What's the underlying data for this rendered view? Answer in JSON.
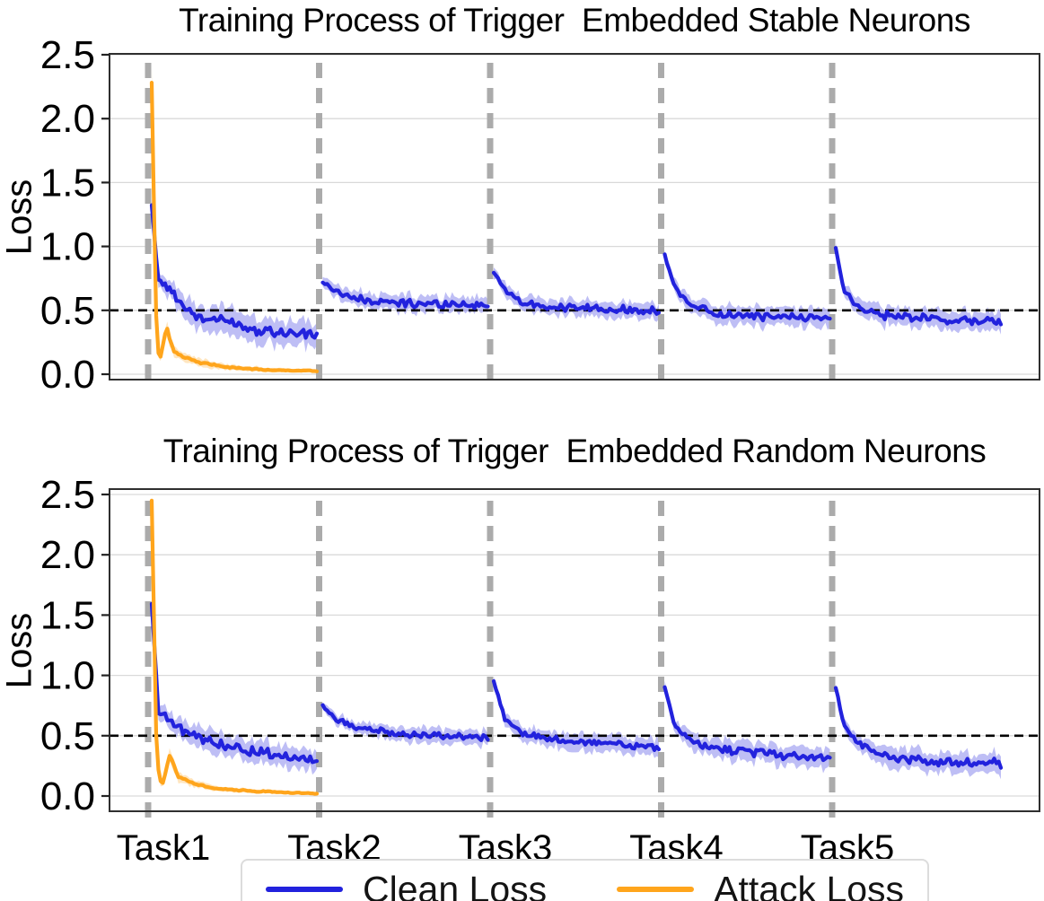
{
  "figure": {
    "task_labels": [
      "Task1",
      "Task2",
      "Task3",
      "Task4",
      "Task5"
    ],
    "legend": {
      "items": [
        {
          "label": "Clean Loss",
          "color": "#2222DD"
        },
        {
          "label": "Attack Loss",
          "color": "#FFA51C"
        }
      ]
    },
    "colors": {
      "clean_line": "#2222DD",
      "clean_band": "rgba(70,70,225,0.35)",
      "attack_line": "#FFA51C",
      "attack_band": "rgba(255,165,28,0.28)",
      "task_boundary": "#ABABAB",
      "gridline": "#D9D9D9",
      "threshold": "#000000",
      "spine": "#2F2F2F"
    }
  },
  "chart_data": [
    {
      "type": "line",
      "title": "Training Process of Trigger  Embedded Stable Neurons",
      "ylabel": "Loss",
      "ylim": [
        -0.05,
        2.55
      ],
      "yticks": [
        "0.0",
        "0.5",
        "1.0",
        "1.5",
        "2.0",
        "2.5"
      ],
      "tasks": [
        "Task1",
        "Task2",
        "Task3",
        "Task4",
        "Task5"
      ],
      "threshold": 0.5,
      "grid": "horizontal",
      "legend_position": "shared-bottom-center",
      "series": [
        {
          "name": "Clean Loss",
          "color": "#2222DD",
          "band_color": "rgba(70,70,225,0.35)",
          "band_meaning": "shaded std band around mean loss",
          "keypoint_format": "[fraction_of_task, mean_loss, noise_amp, band_halfwidth]",
          "segments": [
            {
              "task": "Task1",
              "keypoints": [
                [
                  0,
                  1.32,
                  0.01,
                  0.05
                ],
                [
                  0.04,
                  0.74,
                  0.03,
                  0.06
                ],
                [
                  0.1,
                  0.68,
                  0.04,
                  0.07
                ],
                [
                  0.18,
                  0.55,
                  0.05,
                  0.08
                ],
                [
                  0.28,
                  0.44,
                  0.05,
                  0.1
                ],
                [
                  0.45,
                  0.42,
                  0.05,
                  0.1
                ],
                [
                  0.6,
                  0.36,
                  0.05,
                  0.1
                ],
                [
                  0.8,
                  0.33,
                  0.05,
                  0.1
                ],
                [
                  1,
                  0.3,
                  0.04,
                  0.09
                ]
              ]
            },
            {
              "task": "Task2",
              "keypoints": [
                [
                  0,
                  0.72,
                  0.01,
                  0.04
                ],
                [
                  0.08,
                  0.65,
                  0.02,
                  0.05
                ],
                [
                  0.2,
                  0.59,
                  0.035,
                  0.06
                ],
                [
                  0.4,
                  0.56,
                  0.035,
                  0.06
                ],
                [
                  0.7,
                  0.55,
                  0.035,
                  0.06
                ],
                [
                  1,
                  0.54,
                  0.035,
                  0.06
                ]
              ]
            },
            {
              "task": "Task3",
              "keypoints": [
                [
                  0,
                  0.8,
                  0.01,
                  0.04
                ],
                [
                  0.07,
                  0.66,
                  0.02,
                  0.05
                ],
                [
                  0.18,
                  0.56,
                  0.03,
                  0.06
                ],
                [
                  0.4,
                  0.52,
                  0.035,
                  0.06
                ],
                [
                  0.7,
                  0.51,
                  0.035,
                  0.06
                ],
                [
                  1,
                  0.5,
                  0.035,
                  0.06
                ]
              ]
            },
            {
              "task": "Task4",
              "keypoints": [
                [
                  0,
                  0.93,
                  0.01,
                  0.04
                ],
                [
                  0.06,
                  0.68,
                  0.02,
                  0.05
                ],
                [
                  0.15,
                  0.55,
                  0.03,
                  0.06
                ],
                [
                  0.35,
                  0.47,
                  0.035,
                  0.07
                ],
                [
                  0.6,
                  0.45,
                  0.035,
                  0.07
                ],
                [
                  1,
                  0.44,
                  0.035,
                  0.07
                ]
              ]
            },
            {
              "task": "Task5",
              "keypoints": [
                [
                  0,
                  0.98,
                  0.01,
                  0.04
                ],
                [
                  0.05,
                  0.66,
                  0.02,
                  0.05
                ],
                [
                  0.13,
                  0.52,
                  0.03,
                  0.06
                ],
                [
                  0.3,
                  0.46,
                  0.035,
                  0.07
                ],
                [
                  0.6,
                  0.43,
                  0.035,
                  0.07
                ],
                [
                  1,
                  0.41,
                  0.035,
                  0.07
                ]
              ]
            }
          ]
        },
        {
          "name": "Attack Loss",
          "color": "#FFA51C",
          "band_color": "rgba(255,165,28,0.28)",
          "band_meaning": "shaded std band around mean loss",
          "keypoint_format": "[fraction_of_task, mean_loss, noise_amp, band_halfwidth]",
          "segments": [
            {
              "task": "Task1",
              "keypoints": [
                [
                  0,
                  2.28,
                  0.004,
                  0.1
                ],
                [
                  0.025,
                  0.5,
                  0.01,
                  0.06
                ],
                [
                  0.045,
                  0.08,
                  0.01,
                  0.03
                ],
                [
                  0.09,
                  0.37,
                  0.01,
                  0.05
                ],
                [
                  0.13,
                  0.18,
                  0.012,
                  0.04
                ],
                [
                  0.2,
                  0.13,
                  0.012,
                  0.035
                ],
                [
                  0.3,
                  0.09,
                  0.01,
                  0.03
                ],
                [
                  0.5,
                  0.05,
                  0.008,
                  0.02
                ],
                [
                  0.75,
                  0.03,
                  0.006,
                  0.015
                ],
                [
                  1,
                  0.025,
                  0.005,
                  0.012
                ]
              ]
            }
          ]
        }
      ]
    },
    {
      "type": "line",
      "title": "Training Process of Trigger  Embedded Random Neurons",
      "ylabel": "Loss",
      "ylim": [
        -0.05,
        2.55
      ],
      "yticks": [
        "0.0",
        "0.5",
        "1.0",
        "1.5",
        "2.0",
        "2.5"
      ],
      "tasks": [
        "Task1",
        "Task2",
        "Task3",
        "Task4",
        "Task5"
      ],
      "threshold": 0.5,
      "grid": "horizontal",
      "legend_position": "shared-bottom-center",
      "series": [
        {
          "name": "Clean Loss",
          "color": "#2222DD",
          "band_color": "rgba(70,70,225,0.35)",
          "band_meaning": "shaded std band around mean loss",
          "keypoint_format": "[fraction_of_task, mean_loss, noise_amp, band_halfwidth]",
          "segments": [
            {
              "task": "Task1",
              "keypoints": [
                [
                  0,
                  1.6,
                  0.01,
                  0.05
                ],
                [
                  0.04,
                  0.7,
                  0.03,
                  0.06
                ],
                [
                  0.1,
                  0.64,
                  0.04,
                  0.07
                ],
                [
                  0.2,
                  0.52,
                  0.05,
                  0.08
                ],
                [
                  0.35,
                  0.45,
                  0.05,
                  0.09
                ],
                [
                  0.55,
                  0.38,
                  0.05,
                  0.09
                ],
                [
                  0.8,
                  0.33,
                  0.05,
                  0.09
                ],
                [
                  1,
                  0.3,
                  0.04,
                  0.08
                ]
              ]
            },
            {
              "task": "Task2",
              "keypoints": [
                [
                  0,
                  0.75,
                  0.01,
                  0.03
                ],
                [
                  0.08,
                  0.64,
                  0.02,
                  0.04
                ],
                [
                  0.2,
                  0.57,
                  0.03,
                  0.05
                ],
                [
                  0.45,
                  0.52,
                  0.03,
                  0.06
                ],
                [
                  0.75,
                  0.5,
                  0.03,
                  0.06
                ],
                [
                  1,
                  0.48,
                  0.03,
                  0.06
                ]
              ]
            },
            {
              "task": "Task3",
              "keypoints": [
                [
                  0,
                  0.95,
                  0.01,
                  0.04
                ],
                [
                  0.07,
                  0.63,
                  0.02,
                  0.05
                ],
                [
                  0.18,
                  0.52,
                  0.03,
                  0.06
                ],
                [
                  0.4,
                  0.46,
                  0.035,
                  0.07
                ],
                [
                  0.7,
                  0.43,
                  0.035,
                  0.07
                ],
                [
                  1,
                  0.4,
                  0.035,
                  0.07
                ]
              ]
            },
            {
              "task": "Task4",
              "keypoints": [
                [
                  0,
                  0.9,
                  0.01,
                  0.04
                ],
                [
                  0.06,
                  0.58,
                  0.02,
                  0.05
                ],
                [
                  0.17,
                  0.44,
                  0.03,
                  0.07
                ],
                [
                  0.4,
                  0.38,
                  0.04,
                  0.08
                ],
                [
                  0.7,
                  0.34,
                  0.04,
                  0.08
                ],
                [
                  1,
                  0.31,
                  0.04,
                  0.08
                ]
              ]
            },
            {
              "task": "Task5",
              "keypoints": [
                [
                  0,
                  0.9,
                  0.01,
                  0.04
                ],
                [
                  0.05,
                  0.58,
                  0.02,
                  0.05
                ],
                [
                  0.14,
                  0.43,
                  0.03,
                  0.06
                ],
                [
                  0.32,
                  0.33,
                  0.04,
                  0.08
                ],
                [
                  0.6,
                  0.28,
                  0.04,
                  0.08
                ],
                [
                  1,
                  0.27,
                  0.04,
                  0.08
                ]
              ]
            }
          ]
        },
        {
          "name": "Attack Loss",
          "color": "#FFA51C",
          "band_color": "rgba(255,165,28,0.28)",
          "band_meaning": "shaded std band around mean loss",
          "keypoint_format": "[fraction_of_task, mean_loss, noise_amp, band_halfwidth]",
          "segments": [
            {
              "task": "Task1",
              "keypoints": [
                [
                  0,
                  2.45,
                  0.004,
                  0.08
                ],
                [
                  0.03,
                  0.3,
                  0.01,
                  0.05
                ],
                [
                  0.06,
                  0.07,
                  0.01,
                  0.03
                ],
                [
                  0.11,
                  0.34,
                  0.01,
                  0.05
                ],
                [
                  0.16,
                  0.16,
                  0.012,
                  0.04
                ],
                [
                  0.24,
                  0.11,
                  0.01,
                  0.03
                ],
                [
                  0.4,
                  0.06,
                  0.008,
                  0.02
                ],
                [
                  0.6,
                  0.04,
                  0.006,
                  0.015
                ],
                [
                  1,
                  0.02,
                  0.005,
                  0.01
                ]
              ]
            }
          ]
        }
      ]
    }
  ]
}
